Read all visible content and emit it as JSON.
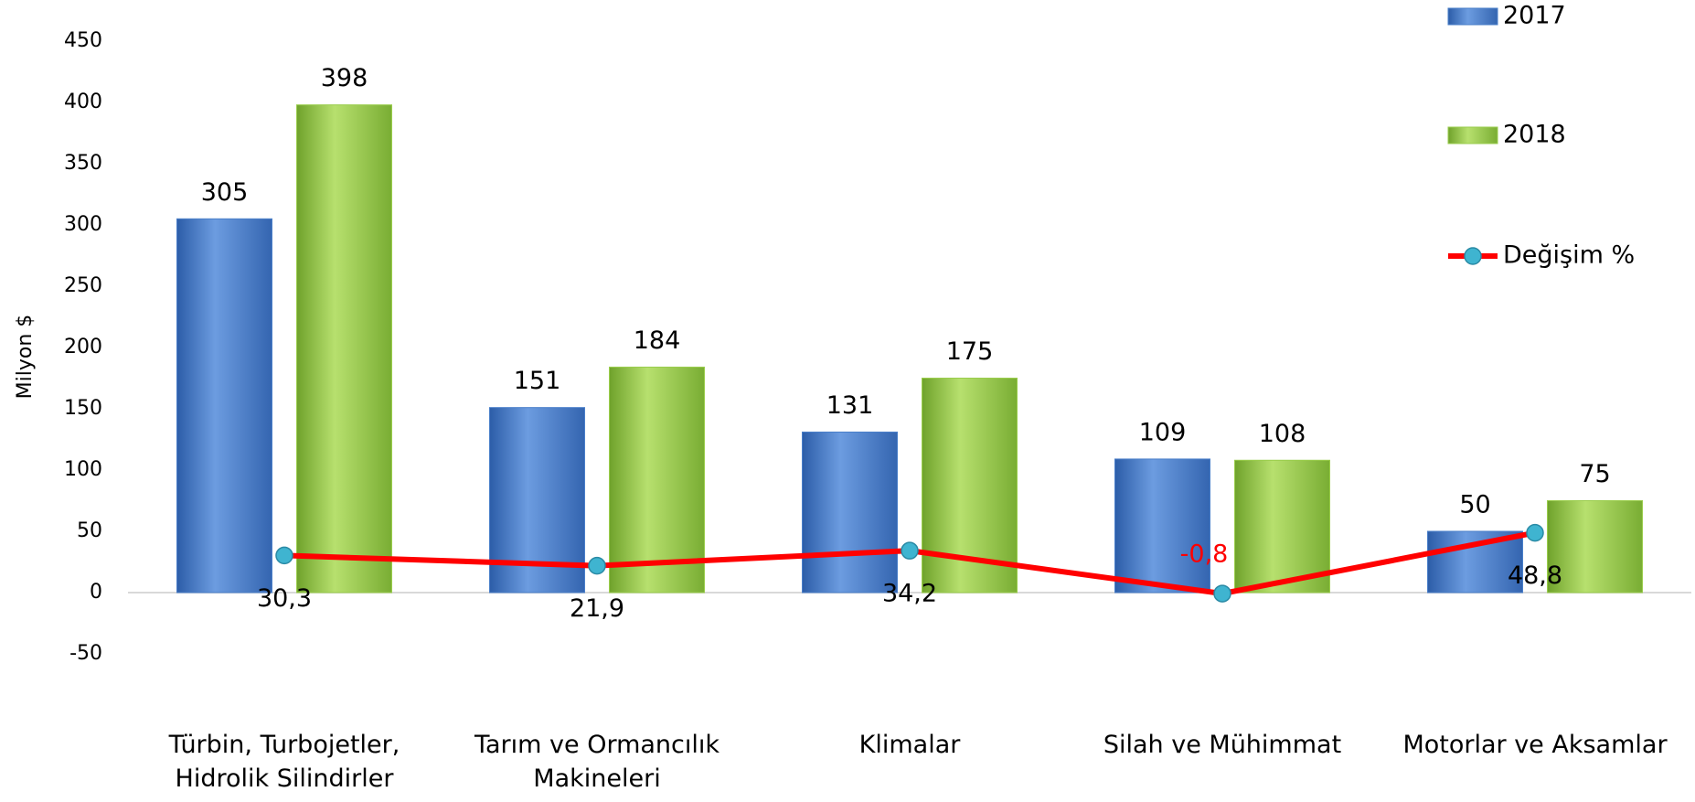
{
  "chart_data": {
    "type": "bar",
    "ylabel": "Milyon $",
    "categories": [
      [
        "Türbin, Turbojetler,",
        "Hidrolik Silindirler"
      ],
      [
        "Tarım ve Ormancılık",
        "Makineleri"
      ],
      [
        "Klimalar"
      ],
      [
        "Silah ve Mühimmat"
      ],
      [
        "Motorlar ve Aksamlar"
      ]
    ],
    "series": [
      {
        "name": "2017",
        "type": "bar",
        "color": "#4a7fc9",
        "values": [
          305,
          151,
          131,
          109,
          50
        ]
      },
      {
        "name": "2018",
        "type": "bar",
        "color": "#9acd4c",
        "values": [
          398,
          184,
          175,
          108,
          75
        ]
      },
      {
        "name": "Değişim %",
        "type": "line",
        "color": "#ff0000",
        "marker_color": "#3fb4d0",
        "values": [
          30.3,
          21.9,
          34.2,
          -0.8,
          48.8
        ],
        "value_labels": [
          "30,3",
          "21,9",
          "34,2",
          "-0,8",
          "48,8"
        ]
      }
    ],
    "ylim": [
      -50,
      450
    ],
    "yticks": [
      -50,
      0,
      50,
      100,
      150,
      200,
      250,
      300,
      350,
      400,
      450
    ],
    "grid": false,
    "legend": "upper right"
  }
}
